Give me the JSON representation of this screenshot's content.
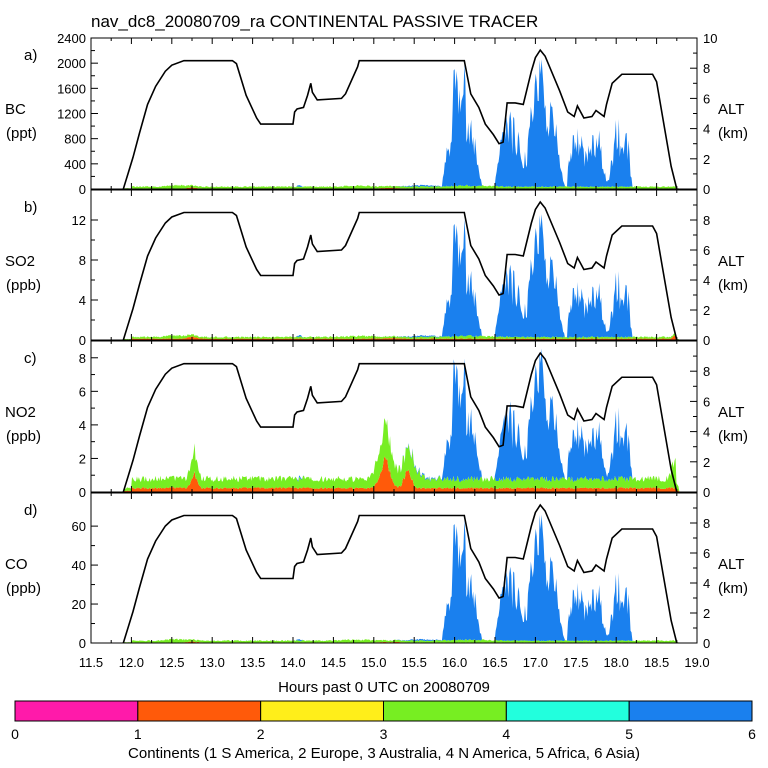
{
  "title": "nav_dc8_20080709_ra CONTINENTAL PASSIVE TRACER",
  "xlabel": "Hours past 0 UTC on 20080709",
  "colorbar": {
    "label": "Continents (1 S America, 2 Europe, 3 Australia, 4 N America, 5 Africa, 6 Asia)",
    "ticks": [
      "0",
      "1",
      "2",
      "3",
      "4",
      "5",
      "6"
    ],
    "colors": [
      "#ff1aaa",
      "#ff5a0a",
      "#ffee1a",
      "#77ee22",
      "#22ffdd",
      "#1a80ee"
    ]
  },
  "chart_data": {
    "type": "area",
    "x_ticks": [
      "11.5",
      "12.0",
      "12.5",
      "13.0",
      "13.5",
      "14.0",
      "14.5",
      "15.0",
      "15.5",
      "16.0",
      "16.5",
      "17.0",
      "17.5",
      "18.0",
      "18.5",
      "19.0"
    ],
    "xlim": [
      11.5,
      19.0
    ],
    "alt_axis": {
      "label": "ALT",
      "unit": "(km)",
      "ticks": [
        "0",
        "2",
        "4",
        "6",
        "8",
        "10"
      ],
      "ylim": [
        0,
        10
      ]
    },
    "altitude_km": {
      "t": [
        11.9,
        12.02,
        12.1,
        12.2,
        12.3,
        12.42,
        12.5,
        12.65,
        13.0,
        13.25,
        13.3,
        13.42,
        13.55,
        13.6,
        14.0,
        14.02,
        14.05,
        14.13,
        14.18,
        14.22,
        14.24,
        14.3,
        14.6,
        14.65,
        14.8,
        14.82,
        16.12,
        16.2,
        16.3,
        16.38,
        16.48,
        16.55,
        16.6,
        16.65,
        16.75,
        16.85,
        16.95,
        17.0,
        17.06,
        17.12,
        17.3,
        17.4,
        17.48,
        17.52,
        17.6,
        17.7,
        17.75,
        17.85,
        17.88,
        17.95,
        18.07,
        18.2,
        18.45,
        18.5,
        18.58,
        18.68,
        18.75
      ],
      "alt": [
        0,
        2.1,
        3.7,
        5.6,
        6.8,
        7.8,
        8.2,
        8.5,
        8.5,
        8.5,
        8.3,
        6.2,
        4.7,
        4.3,
        4.3,
        5.1,
        5.3,
        5.4,
        6.2,
        7.0,
        6.4,
        5.9,
        6.0,
        6.3,
        8.1,
        8.5,
        8.5,
        6.3,
        5.4,
        4.3,
        3.6,
        3.0,
        3.1,
        5.7,
        5.7,
        5.6,
        7.8,
        8.7,
        9.2,
        8.8,
        6.5,
        5.1,
        4.8,
        5.5,
        4.7,
        4.8,
        5.2,
        4.8,
        5.6,
        7.0,
        7.6,
        7.6,
        7.6,
        7.1,
        4.6,
        1.5,
        0
      ]
    },
    "panels": [
      {
        "letter": "a)",
        "species": "BC",
        "unit": "(ppt)",
        "y_ticks": [
          "0",
          "400",
          "800",
          "1200",
          "1600",
          "2000",
          "2400"
        ],
        "ylim": [
          0,
          2400
        ],
        "scale": 2060
      },
      {
        "letter": "b)",
        "species": "SO2",
        "unit": "(ppb)",
        "y_ticks": [
          "0",
          "4",
          "8",
          "12"
        ],
        "ylim": [
          0,
          15
        ],
        "scale": 12.5
      },
      {
        "letter": "c)",
        "species": "NO2",
        "unit": "(ppb)",
        "y_ticks": [
          "0",
          "2",
          "4",
          "6",
          "8"
        ],
        "ylim": [
          0,
          9
        ],
        "scale": 7.8
      },
      {
        "letter": "d)",
        "species": "CO",
        "unit": "(ppb)",
        "y_ticks": [
          "0",
          "20",
          "40",
          "60"
        ],
        "ylim": [
          0,
          77
        ],
        "scale": 66
      }
    ],
    "asia_profile_rel": {
      "t": [
        15.85,
        15.86,
        15.9,
        15.95,
        16.0,
        16.02,
        16.05,
        16.08,
        16.1,
        16.15,
        16.2,
        16.25,
        16.3,
        16.32,
        16.38,
        16.48,
        16.5,
        16.52,
        16.55,
        16.58,
        16.65,
        16.72,
        16.78,
        16.85,
        16.9,
        16.95,
        17.0,
        17.02,
        17.05,
        17.1,
        17.15,
        17.2,
        17.25,
        17.3,
        17.34,
        17.38,
        17.4,
        17.42,
        17.5,
        17.55,
        17.6,
        17.68,
        17.75,
        17.8,
        17.85,
        17.9,
        17.95,
        17.98,
        18.02,
        18.05,
        18.1,
        18.15,
        18.18,
        18.2
      ],
      "v": [
        0,
        0.15,
        0.25,
        0.4,
        0.9,
        0.65,
        1.0,
        0.8,
        0.9,
        0.55,
        0.45,
        0.3,
        0.1,
        0.05,
        0,
        0,
        0.05,
        0.1,
        0.3,
        0.55,
        0.45,
        0.45,
        0.35,
        0.25,
        0.2,
        0.8,
        0.95,
        0.7,
        0.9,
        0.7,
        0.6,
        0.5,
        0.4,
        0.25,
        0.05,
        0,
        0.08,
        0.3,
        0.4,
        0.35,
        0.25,
        0.3,
        0.4,
        0.35,
        0.1,
        0.05,
        0.2,
        0.4,
        0.5,
        0.35,
        0.45,
        0.3,
        0.1,
        0
      ]
    }
  }
}
